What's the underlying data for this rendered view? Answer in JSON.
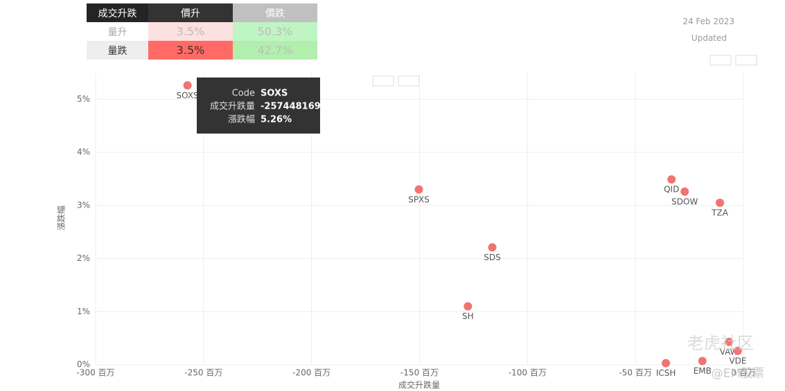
{
  "matrix": {
    "header": [
      "成交升跌",
      "價升",
      "價跌"
    ],
    "rows": [
      [
        "量升",
        "3.5%",
        "50.3%"
      ],
      [
        "量跌",
        "3.5%",
        "42.7%"
      ]
    ]
  },
  "date": "24 Feb 2023",
  "updated_label": "Updated",
  "tooltip": {
    "rows": [
      [
        "Code",
        "SOXS"
      ],
      [
        "成交升跌量",
        "-257448169"
      ],
      [
        "漲跌幅",
        "5.26%"
      ]
    ]
  },
  "watermark": [
    "老虎社区",
    "@EM股票"
  ],
  "chart_data": {
    "type": "scatter",
    "x_label": "成交升跌量",
    "y_label": "漲跌幅",
    "series": [
      {
        "name": "Code",
        "color": "#f07470",
        "labels": [
          "SOXS",
          "SPXS",
          "SDS",
          "SH",
          "QID",
          "SDOW",
          "TZA",
          "VAW",
          "ICSH",
          "EMB",
          "VDE"
        ],
        "x": [
          -257.45,
          -150.3,
          -116.3,
          -127.6,
          -33.3,
          -27.2,
          -10.9,
          -6.7,
          -35.9,
          -19.0,
          -2.6
        ],
        "values": [
          5.26,
          3.3,
          2.21,
          1.1,
          3.49,
          3.26,
          3.05,
          0.43,
          0.03,
          0.07,
          0.26
        ]
      }
    ],
    "xlim": [
      -300,
      0
    ],
    "ylim": [
      0,
      5.5
    ],
    "xticks": [
      {
        "value": -300,
        "label": "-300 百万"
      },
      {
        "value": -250,
        "label": "-250 百万"
      },
      {
        "value": -200,
        "label": "-200 百万"
      },
      {
        "value": -150,
        "label": "-150 百万"
      },
      {
        "value": -100,
        "label": "-100 百万"
      },
      {
        "value": -50,
        "label": "-50 百万"
      },
      {
        "value": 0,
        "label": "0 百万"
      }
    ],
    "yticks": [
      {
        "value": 0,
        "label": "0%"
      },
      {
        "value": 1,
        "label": "1%"
      },
      {
        "value": 2,
        "label": "2%"
      },
      {
        "value": 3,
        "label": "3%"
      },
      {
        "value": 4,
        "label": "4%"
      },
      {
        "value": 5,
        "label": "5%"
      }
    ],
    "grid": true
  }
}
